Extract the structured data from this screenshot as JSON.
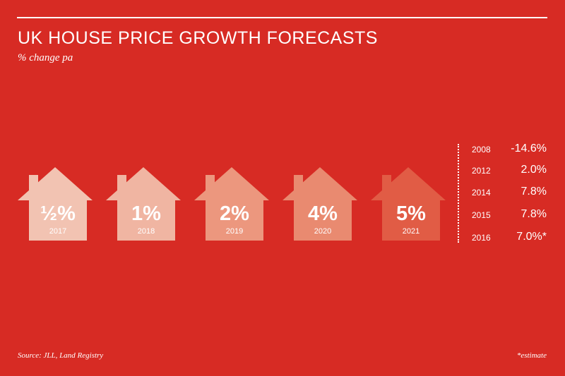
{
  "title": "UK HOUSE PRICE GROWTH FORECASTS",
  "subtitle": "% change pa",
  "source": "Source: JLL, Land Registry",
  "footnote": "*estimate",
  "colors": {
    "background": "#d72b24",
    "house_fills": [
      "#f2c3b2",
      "#f0b5a2",
      "#ec977e",
      "#e98a70",
      "#e15c45"
    ]
  },
  "chart_data": {
    "type": "table",
    "forecasts": {
      "years": [
        "2017",
        "2018",
        "2019",
        "2020",
        "2021"
      ],
      "labels": [
        "½%",
        "1%",
        "2%",
        "4%",
        "5%"
      ],
      "values": [
        0.5,
        1,
        2,
        4,
        5
      ]
    },
    "history": {
      "years": [
        "2008",
        "2012",
        "2014",
        "2015",
        "2016"
      ],
      "labels": [
        "-14.6%",
        "2.0%",
        "7.8%",
        "7.8%",
        "7.0%*"
      ],
      "values": [
        -14.6,
        2.0,
        7.8,
        7.8,
        7.0
      ]
    }
  }
}
